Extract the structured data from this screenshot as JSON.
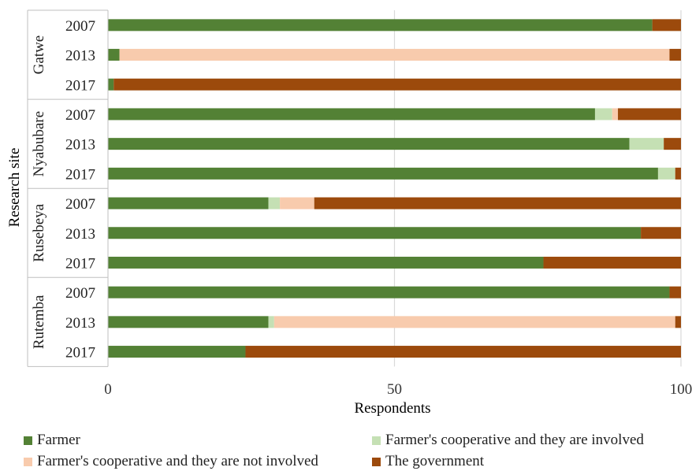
{
  "chart_data": {
    "type": "bar",
    "orientation": "horizontal",
    "stacked": true,
    "xlabel": "Respondents",
    "ylabel": "Research site",
    "xlim": [
      0,
      100
    ],
    "xticks": [
      "0",
      "50",
      "100"
    ],
    "grid": "vertical",
    "legend_position": "bottom",
    "groups": [
      {
        "site": "Gatwe",
        "years": [
          "2007",
          "2013",
          "2017"
        ]
      },
      {
        "site": "Nyabubare",
        "years": [
          "2007",
          "2013",
          "2017"
        ]
      },
      {
        "site": "Rusebeya",
        "years": [
          "2007",
          "2013",
          "2017"
        ]
      },
      {
        "site": "Rutemba",
        "years": [
          "2007",
          "2013",
          "2017"
        ]
      }
    ],
    "series": [
      {
        "name": "Farmer",
        "color": "#538135",
        "values": [
          95,
          2,
          1,
          85,
          91,
          96,
          28,
          93,
          76,
          98,
          28,
          24
        ]
      },
      {
        "name": "Farmer's cooperative and they are involved",
        "color": "#c5e0b4",
        "values": [
          0,
          0,
          0,
          3,
          6,
          3,
          2,
          0,
          0,
          0,
          1,
          0
        ]
      },
      {
        "name": "Farmer's cooperative and they are not involved",
        "color": "#f8cbad",
        "values": [
          0,
          96,
          0,
          1,
          0,
          0,
          6,
          0,
          0,
          0,
          70,
          0
        ]
      },
      {
        "name": "The government",
        "color": "#9c4a0c",
        "values": [
          5,
          2,
          99,
          11,
          3,
          1,
          64,
          7,
          24,
          2,
          1,
          76
        ]
      }
    ]
  }
}
